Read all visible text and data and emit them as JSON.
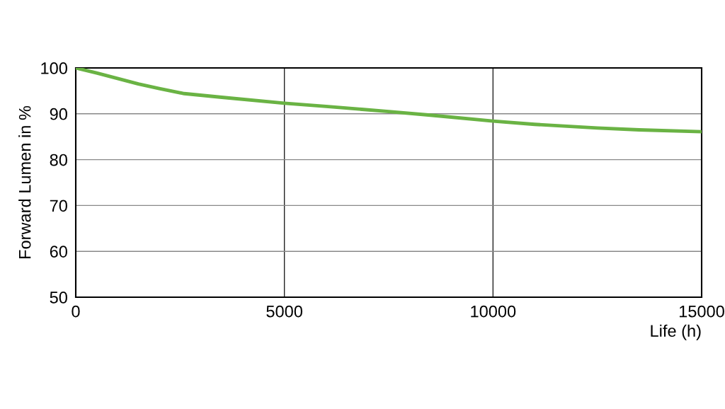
{
  "chart_data": {
    "type": "line",
    "xlabel": "Life (h)",
    "ylabel": "Forward Lumen in %",
    "x": [
      0,
      500,
      1000,
      1500,
      2000,
      2600,
      3500,
      5000,
      6000,
      7500,
      8500,
      10000,
      11000,
      12500,
      13500,
      15000
    ],
    "series": [
      {
        "color": "#6ab344",
        "values": [
          100,
          98.9,
          97.7,
          96.5,
          95.5,
          94.4,
          93.6,
          92.3,
          91.6,
          90.5,
          89.7,
          88.4,
          87.7,
          86.9,
          86.5,
          86.1
        ]
      }
    ],
    "xlim": [
      0,
      15000
    ],
    "xticks": [
      0,
      5000,
      10000,
      15000
    ],
    "ylim": [
      50,
      100
    ],
    "yticks": [
      50,
      60,
      70,
      80,
      90,
      100
    ],
    "grid": true,
    "marker": "none",
    "line_style": "solid"
  }
}
